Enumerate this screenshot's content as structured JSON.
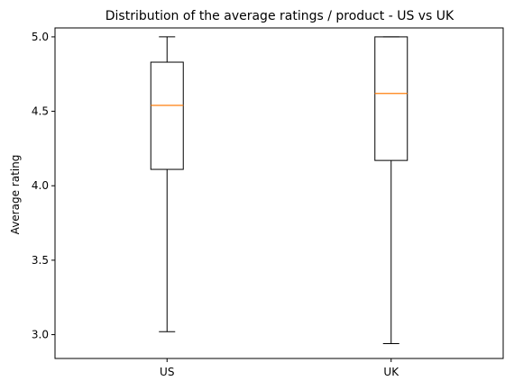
{
  "chart_data": {
    "type": "boxplot",
    "title": "Distribution of the average ratings / product - US vs UK",
    "ylabel": "Average rating",
    "xlabel": "",
    "categories": [
      "US",
      "UK"
    ],
    "boxes": [
      {
        "category": "US",
        "whisker_low": 3.02,
        "q1": 4.11,
        "median": 4.54,
        "q3": 4.83,
        "whisker_high": 5.0
      },
      {
        "category": "UK",
        "whisker_low": 2.94,
        "q1": 4.17,
        "median": 4.62,
        "q3": 5.0,
        "whisker_high": 5.0
      }
    ],
    "ylim": [
      2.84,
      5.06
    ],
    "yticks": [
      3.0,
      3.5,
      4.0,
      4.5,
      5.0
    ],
    "ytick_labels": [
      "3.0",
      "3.5",
      "4.0",
      "4.5",
      "5.0"
    ],
    "grid": false,
    "colors": {
      "box": "#000000",
      "median": "#ff7f0e",
      "axes": "#000000"
    }
  }
}
